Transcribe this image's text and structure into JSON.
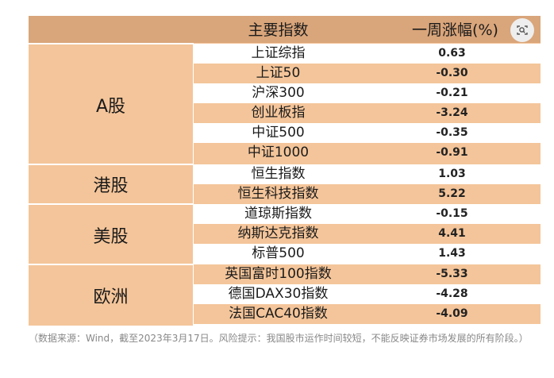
{
  "header": {
    "index_label": "主要指数",
    "change_label": "一周涨幅(%)"
  },
  "markets": [
    {
      "label": "A股",
      "rows": [
        {
          "name": "上证综指",
          "value": "0.63"
        },
        {
          "name": "上证50",
          "value": "-0.30"
        },
        {
          "name": "沪深300",
          "value": "-0.21"
        },
        {
          "name": "创业板指",
          "value": "-3.24"
        },
        {
          "name": "中证500",
          "value": "-0.35"
        },
        {
          "name": "中证1000",
          "value": "-0.91"
        }
      ]
    },
    {
      "label": "港股",
      "rows": [
        {
          "name": "恒生指数",
          "value": "1.03"
        },
        {
          "name": "恒生科技指数",
          "value": "5.22"
        }
      ]
    },
    {
      "label": "美股",
      "rows": [
        {
          "name": "道琼斯指数",
          "value": "-0.15"
        },
        {
          "name": "纳斯达克指数",
          "value": "4.41"
        },
        {
          "name": "标普500",
          "value": "1.43"
        }
      ]
    },
    {
      "label": "欧洲",
      "rows": [
        {
          "name": "英国富时100指数",
          "value": "-5.33"
        },
        {
          "name": "德国DAX30指数",
          "value": "-4.28"
        },
        {
          "name": "法国CAC40指数",
          "value": "-4.09"
        }
      ]
    }
  ],
  "footnote": "（数据来源：Wind，截至2023年3月17日。风险提示：我国股市运作时间较短，不能反映证券市场发展的所有阶段。）",
  "icons": {
    "image_search": "camera-search-icon"
  },
  "colors": {
    "header_bg": "#d9a57a",
    "row_tan": "#f4c59a",
    "row_white": "#ffffff"
  }
}
